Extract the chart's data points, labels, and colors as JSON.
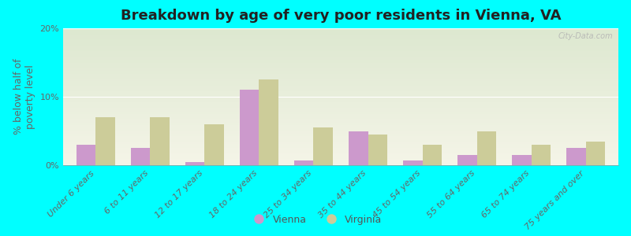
{
  "title": "Breakdown by age of very poor residents in Vienna, VA",
  "ylabel": "% below half of\npoverty level",
  "categories": [
    "Under 6 years",
    "6 to 11 years",
    "12 to 17 years",
    "18 to 24 years",
    "25 to 34 years",
    "35 to 44 years",
    "45 to 54 years",
    "55 to 64 years",
    "65 to 74 years",
    "75 years and over"
  ],
  "vienna_values": [
    3.0,
    2.5,
    0.5,
    11.0,
    0.7,
    5.0,
    0.7,
    1.5,
    1.5,
    2.5
  ],
  "virginia_values": [
    7.0,
    7.0,
    6.0,
    12.5,
    5.5,
    4.5,
    3.0,
    5.0,
    3.0,
    3.5
  ],
  "vienna_color": "#cc99cc",
  "virginia_color": "#cccc99",
  "background_outer": "#00ffff",
  "background_plot_top": "#dde8d0",
  "background_plot_bottom": "#f5f5e8",
  "ylim": [
    0,
    20
  ],
  "yticks": [
    0,
    10,
    20
  ],
  "ytick_labels": [
    "0%",
    "10%",
    "20%"
  ],
  "bar_width": 0.35,
  "title_fontsize": 13,
  "axis_label_fontsize": 9,
  "tick_fontsize": 8,
  "legend_labels": [
    "Vienna",
    "Virginia"
  ],
  "watermark": "City-Data.com"
}
